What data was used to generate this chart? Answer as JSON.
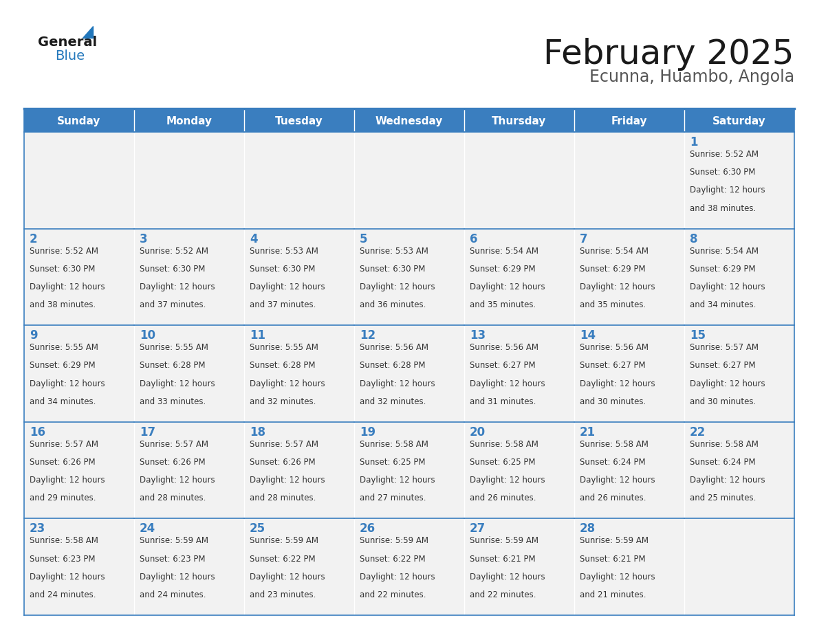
{
  "title": "February 2025",
  "subtitle": "Ecunna, Huambo, Angola",
  "days_of_week": [
    "Sunday",
    "Monday",
    "Tuesday",
    "Wednesday",
    "Thursday",
    "Friday",
    "Saturday"
  ],
  "header_bg": "#3a7ebf",
  "header_text": "#ffffff",
  "cell_bg": "#f2f2f2",
  "cell_bg_empty": "#f2f2f2",
  "border_color": "#3a7ebf",
  "text_color": "#333333",
  "day_num_color": "#3a7ebf",
  "logo_text_color": "#1a1a1a",
  "logo_blue_color": "#2277bb",
  "calendar_data": [
    [
      null,
      null,
      null,
      null,
      null,
      null,
      {
        "day": 1,
        "sunrise": "5:52 AM",
        "sunset": "6:30 PM",
        "daylight_mins": "38 minutes."
      }
    ],
    [
      {
        "day": 2,
        "sunrise": "5:52 AM",
        "sunset": "6:30 PM",
        "daylight_mins": "38 minutes."
      },
      {
        "day": 3,
        "sunrise": "5:52 AM",
        "sunset": "6:30 PM",
        "daylight_mins": "37 minutes."
      },
      {
        "day": 4,
        "sunrise": "5:53 AM",
        "sunset": "6:30 PM",
        "daylight_mins": "37 minutes."
      },
      {
        "day": 5,
        "sunrise": "5:53 AM",
        "sunset": "6:30 PM",
        "daylight_mins": "36 minutes."
      },
      {
        "day": 6,
        "sunrise": "5:54 AM",
        "sunset": "6:29 PM",
        "daylight_mins": "35 minutes."
      },
      {
        "day": 7,
        "sunrise": "5:54 AM",
        "sunset": "6:29 PM",
        "daylight_mins": "35 minutes."
      },
      {
        "day": 8,
        "sunrise": "5:54 AM",
        "sunset": "6:29 PM",
        "daylight_mins": "34 minutes."
      }
    ],
    [
      {
        "day": 9,
        "sunrise": "5:55 AM",
        "sunset": "6:29 PM",
        "daylight_mins": "34 minutes."
      },
      {
        "day": 10,
        "sunrise": "5:55 AM",
        "sunset": "6:28 PM",
        "daylight_mins": "33 minutes."
      },
      {
        "day": 11,
        "sunrise": "5:55 AM",
        "sunset": "6:28 PM",
        "daylight_mins": "32 minutes."
      },
      {
        "day": 12,
        "sunrise": "5:56 AM",
        "sunset": "6:28 PM",
        "daylight_mins": "32 minutes."
      },
      {
        "day": 13,
        "sunrise": "5:56 AM",
        "sunset": "6:27 PM",
        "daylight_mins": "31 minutes."
      },
      {
        "day": 14,
        "sunrise": "5:56 AM",
        "sunset": "6:27 PM",
        "daylight_mins": "30 minutes."
      },
      {
        "day": 15,
        "sunrise": "5:57 AM",
        "sunset": "6:27 PM",
        "daylight_mins": "30 minutes."
      }
    ],
    [
      {
        "day": 16,
        "sunrise": "5:57 AM",
        "sunset": "6:26 PM",
        "daylight_mins": "29 minutes."
      },
      {
        "day": 17,
        "sunrise": "5:57 AM",
        "sunset": "6:26 PM",
        "daylight_mins": "28 minutes."
      },
      {
        "day": 18,
        "sunrise": "5:57 AM",
        "sunset": "6:26 PM",
        "daylight_mins": "28 minutes."
      },
      {
        "day": 19,
        "sunrise": "5:58 AM",
        "sunset": "6:25 PM",
        "daylight_mins": "27 minutes."
      },
      {
        "day": 20,
        "sunrise": "5:58 AM",
        "sunset": "6:25 PM",
        "daylight_mins": "26 minutes."
      },
      {
        "day": 21,
        "sunrise": "5:58 AM",
        "sunset": "6:24 PM",
        "daylight_mins": "26 minutes."
      },
      {
        "day": 22,
        "sunrise": "5:58 AM",
        "sunset": "6:24 PM",
        "daylight_mins": "25 minutes."
      }
    ],
    [
      {
        "day": 23,
        "sunrise": "5:58 AM",
        "sunset": "6:23 PM",
        "daylight_mins": "24 minutes."
      },
      {
        "day": 24,
        "sunrise": "5:59 AM",
        "sunset": "6:23 PM",
        "daylight_mins": "24 minutes."
      },
      {
        "day": 25,
        "sunrise": "5:59 AM",
        "sunset": "6:22 PM",
        "daylight_mins": "23 minutes."
      },
      {
        "day": 26,
        "sunrise": "5:59 AM",
        "sunset": "6:22 PM",
        "daylight_mins": "22 minutes."
      },
      {
        "day": 27,
        "sunrise": "5:59 AM",
        "sunset": "6:21 PM",
        "daylight_mins": "22 minutes."
      },
      {
        "day": 28,
        "sunrise": "5:59 AM",
        "sunset": "6:21 PM",
        "daylight_mins": "21 minutes."
      },
      null
    ]
  ]
}
